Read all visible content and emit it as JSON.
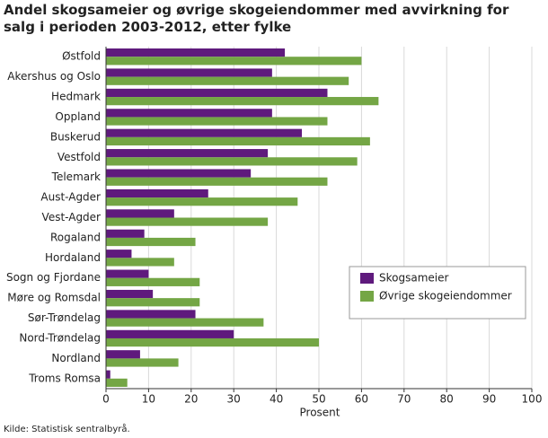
{
  "chart_data": {
    "type": "hbar",
    "title": "Andel skogsameier og øvrige skogeiendommer med avvirkning for salg i perioden 2003-2012, etter fylke",
    "categories": [
      "Østfold",
      "Akershus og Oslo",
      "Hedmark",
      "Oppland",
      "Buskerud",
      "Vestfold",
      "Telemark",
      "Aust-Agder",
      "Vest-Agder",
      "Rogaland",
      "Hordaland",
      "Sogn og Fjordane",
      "Møre og Romsdal",
      "Sør-Trøndelag",
      "Nord-Trøndelag",
      "Nordland",
      "Troms Romsa"
    ],
    "series": [
      {
        "name": "Skogsameier",
        "color": "#5f1a7d",
        "values": [
          42,
          39,
          52,
          39,
          46,
          38,
          34,
          24,
          16,
          9,
          6,
          10,
          11,
          21,
          30,
          8,
          1
        ]
      },
      {
        "name": "Øvrige skogeiendommer",
        "color": "#74a645",
        "values": [
          60,
          57,
          64,
          52,
          62,
          59,
          52,
          45,
          38,
          21,
          16,
          22,
          22,
          37,
          50,
          17,
          5
        ]
      }
    ],
    "xlim": [
      0,
      100
    ],
    "xticks": [
      0,
      10,
      20,
      30,
      40,
      50,
      60,
      70,
      80,
      90,
      100
    ],
    "xlabel": "Prosent",
    "grid": true,
    "legend_position": "lower right",
    "source": "Kilde: Statistisk sentralbyrå."
  }
}
